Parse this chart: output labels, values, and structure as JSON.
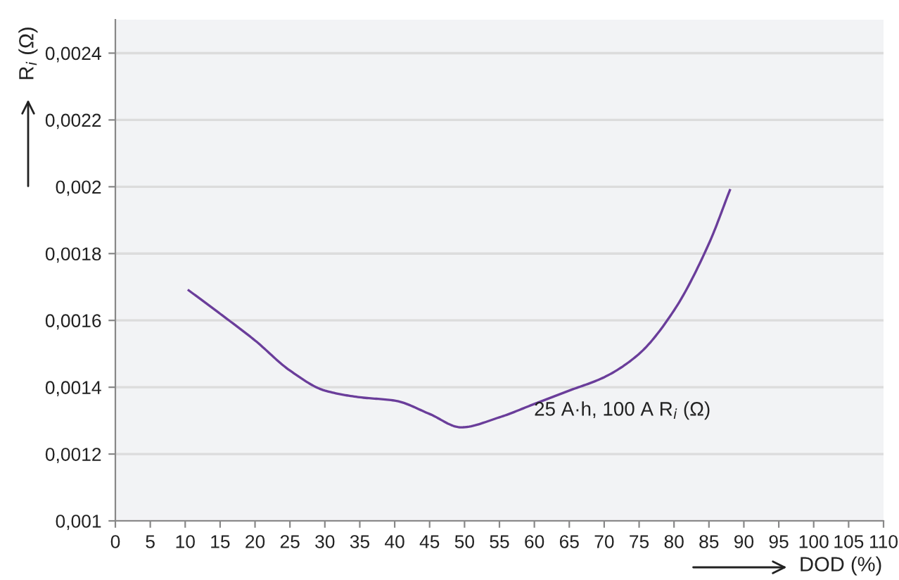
{
  "chart_data": {
    "type": "line",
    "xlabel": "DOD (%)",
    "ylabel": "R$_{i}$ (Ω)",
    "x": [
      10.5,
      15,
      20,
      25,
      30,
      35,
      40,
      45,
      49.5,
      55,
      60,
      65,
      70,
      75,
      80,
      85,
      88
    ],
    "series": [
      {
        "color": "#6a3d9a",
        "values": [
          0.00169,
          0.00162,
          0.00154,
          0.00145,
          0.00139,
          0.00137,
          0.00136,
          0.00132,
          0.00128,
          0.00131,
          0.00135,
          0.00139,
          0.00143,
          0.0015,
          0.00163,
          0.00183,
          0.00199
        ]
      }
    ],
    "xlim": [
      0,
      110
    ],
    "xticks": [
      0,
      5,
      10,
      15,
      20,
      25,
      30,
      35,
      40,
      45,
      50,
      55,
      60,
      65,
      70,
      75,
      80,
      85,
      90,
      95,
      100,
      105,
      110
    ],
    "ylim": [
      0.001,
      0.0025
    ],
    "yticks": [
      {
        "value": 0.001,
        "label": "0,001"
      },
      {
        "value": 0.0012,
        "label": "0,0012"
      },
      {
        "value": 0.0014,
        "label": "0,0014"
      },
      {
        "value": 0.0016,
        "label": "0,0016"
      },
      {
        "value": 0.0018,
        "label": "0,0018"
      },
      {
        "value": 0.002,
        "label": "0,002"
      },
      {
        "value": 0.0022,
        "label": "0,0022"
      },
      {
        "value": 0.0024,
        "label": "0,0024"
      }
    ],
    "grid": "y",
    "marker": "none",
    "line_style": "solid",
    "annotations": [
      "25 A·h, 100 A R$_{i}$ (Ω)"
    ]
  }
}
